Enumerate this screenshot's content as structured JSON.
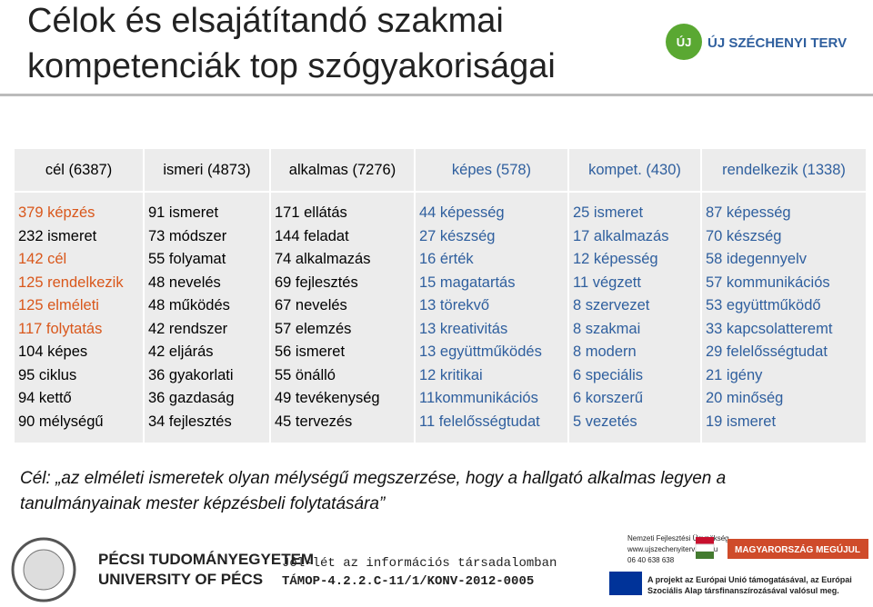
{
  "header": {
    "title_line1": "Célok és elsajátítandó szakmai",
    "title_line2": "kompetenciák top szógyakoriságai",
    "logo": "ÚJ SZÉCHENYI TERV",
    "logo_badge": "ÚJ"
  },
  "table": {
    "header": [
      "cél (6387)",
      "ismeri (4873)",
      "alkalmas (7276)",
      "képes (578)",
      "kompet. (430)",
      "rendelkezik (1338)"
    ],
    "columns": [
      [
        "379 képzés",
        "232 ismeret",
        "142 cél",
        "125 rendelkezik",
        "125 elméleti",
        "117 folytatás",
        "104 képes",
        "95 ciklus",
        "94 kettő",
        "90 mélységű"
      ],
      [
        "91 ismeret",
        "73 módszer",
        "55 folyamat",
        "48 nevelés",
        "48 működés",
        "42 rendszer",
        "42 eljárás",
        "36 gyakorlati",
        "36 gazdaság",
        "34 fejlesztés"
      ],
      [
        "171 ellátás",
        "144 feladat",
        "74 alkalmazás",
        "69 fejlesztés",
        "67 nevelés",
        "57 elemzés",
        "56 ismeret",
        "55 önálló",
        "49 tevékenység",
        "45 tervezés"
      ],
      [
        "44 képesség",
        "27 készség",
        "16 érték",
        "15 magatartás",
        "13 törekvő",
        "13 kreativitás",
        "13 együttműködés",
        "12 kritikai",
        "11kommunikációs",
        "11 felelősségtudat"
      ],
      [
        "25 ismeret",
        "17 alkalmazás",
        "12 képesség",
        "11 végzett",
        "8 szervezet",
        "8 szakmai",
        "8 modern",
        "6 speciális",
        "6 korszerű",
        "5 vezetés"
      ],
      [
        "87 képesség",
        "70 készség",
        "58 idegennyelv",
        "57 kommunikációs",
        "53 együttműködő",
        "33 kapcsolatteremt",
        "29 felelősségtudat",
        "21 igény",
        "20 minőség",
        "19 ismeret"
      ]
    ]
  },
  "quote": {
    "line1": "Cél: „az elméleti ismeretek olyan mélységű megszerzése, hogy a hallgató alkalmas legyen a",
    "line2": "tanulmányainak mester képzésbeli folytatására”"
  },
  "footer": {
    "university_hu": "PÉCSI TUDOMÁNYEGYETEM",
    "university_en": "UNIVERSITY OF PÉCS",
    "project_title": "Jól-lét az információs társadalomban",
    "project_code": "TÁMOP-4.2.2.C-11/1/KONV-2012-0005",
    "agency": "Nemzeti Fejlesztési Ügynökség",
    "agency_web": "www.ujszechenyiterv.gov.hu",
    "agency_phone": "06 40 638 638",
    "slogan": "MAGYARORSZÁG MEGÚJUL",
    "eu_line1": "A projekt az Európai Unió támogatásával, az Európai",
    "eu_line2": "Szociális Alap társfinanszírozásával valósul meg."
  }
}
